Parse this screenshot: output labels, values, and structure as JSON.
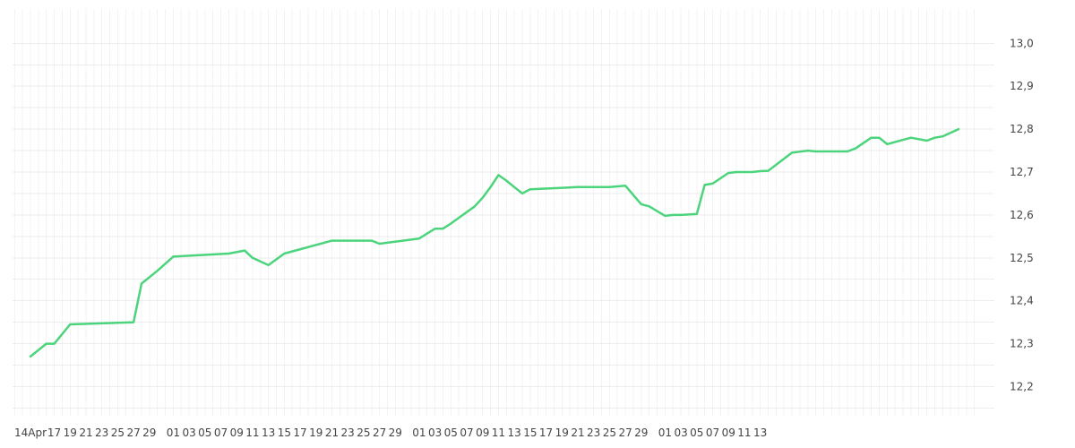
{
  "chart_data": {
    "type": "line",
    "title": "",
    "xlabel": "",
    "ylabel": "",
    "x_tick_labels": [
      "14Apr",
      "17",
      "19",
      "21",
      "23",
      "25",
      "27",
      "29",
      "01",
      "03",
      "05",
      "07",
      "09",
      "11",
      "13",
      "15",
      "17",
      "19",
      "21",
      "23",
      "25",
      "27",
      "29",
      "01",
      "03",
      "05",
      "07",
      "09",
      "11",
      "13",
      "15",
      "17",
      "19",
      "21",
      "23",
      "25",
      "27",
      "29",
      "01",
      "03",
      "05",
      "07",
      "09",
      "11",
      "13"
    ],
    "y_tick_labels": [
      "12,2",
      "12,3",
      "12,4",
      "12,5",
      "12,6",
      "12,7",
      "12,8",
      "12,9",
      "13,0"
    ],
    "y_ticks": [
      12.2,
      12.3,
      12.4,
      12.5,
      12.6,
      12.7,
      12.8,
      12.9,
      13.0
    ],
    "ylim": [
      12.13,
      13.08
    ],
    "y_axis_position": "right",
    "grid": true,
    "color": "#4cd47c",
    "series": [
      {
        "x": [
          0,
          2,
          3,
          5,
          13,
          14,
          16,
          18,
          25,
          27,
          28,
          30,
          32,
          38,
          40,
          41,
          43,
          44,
          49,
          51,
          52,
          53,
          56,
          57,
          58,
          59,
          60,
          61,
          62,
          63,
          69,
          71,
          72,
          73,
          75,
          77,
          78,
          80,
          81,
          82,
          84,
          85,
          86,
          88,
          89,
          91,
          92,
          93,
          96,
          98,
          99,
          100,
          102,
          103,
          104,
          106,
          107,
          108,
          110,
          111,
          113,
          114,
          115,
          117
        ],
        "y": [
          12.27,
          12.3,
          12.3,
          12.345,
          12.35,
          12.44,
          12.47,
          12.503,
          12.51,
          12.517,
          12.5,
          12.483,
          12.51,
          12.54,
          12.54,
          12.54,
          12.54,
          12.533,
          12.545,
          12.568,
          12.568,
          12.58,
          12.62,
          12.64,
          12.665,
          12.693,
          12.68,
          12.665,
          12.65,
          12.66,
          12.665,
          12.665,
          12.665,
          12.665,
          12.668,
          12.625,
          12.62,
          12.598,
          12.6,
          12.6,
          12.602,
          12.67,
          12.673,
          12.698,
          12.7,
          12.7,
          12.702,
          12.703,
          12.745,
          12.75,
          12.748,
          12.748,
          12.748,
          12.748,
          12.755,
          12.78,
          12.78,
          12.765,
          12.775,
          12.78,
          12.773,
          12.78,
          12.783,
          12.8
        ]
      }
    ]
  }
}
